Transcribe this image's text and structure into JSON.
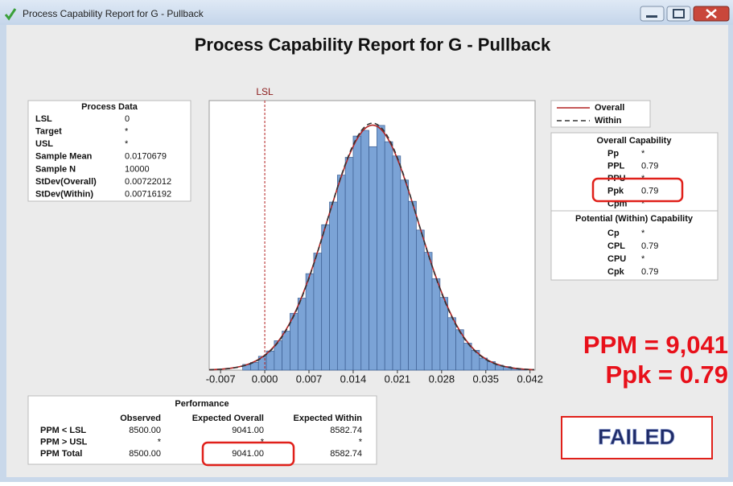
{
  "window": {
    "title": "Process Capability Report for G - Pullback"
  },
  "report": {
    "title": "Process Capability Report for G - Pullback"
  },
  "process_data": {
    "title": "Process Data",
    "rows": [
      {
        "label": "LSL",
        "value": 0
      },
      {
        "label": "Target",
        "value": "*"
      },
      {
        "label": "USL",
        "value": "*"
      },
      {
        "label": "Sample Mean",
        "value": 0.0170679
      },
      {
        "label": "Sample N",
        "value": 10000
      },
      {
        "label": "StDev(Overall)",
        "value": 0.00722012
      },
      {
        "label": "StDev(Within)",
        "value": 0.00716192
      }
    ]
  },
  "chart_data": {
    "type": "histogram",
    "bins": [
      -0.0035,
      -0.00225,
      -0.001,
      0.00025,
      0.0015,
      0.00275,
      0.004,
      0.00525,
      0.0065,
      0.00775,
      0.009,
      0.01025,
      0.0115,
      0.01275,
      0.014,
      0.01525,
      0.0165,
      0.01775,
      0.019,
      0.02025,
      0.0215,
      0.02275,
      0.024,
      0.02525,
      0.0265,
      0.02775,
      0.029,
      0.03025,
      0.0315,
      0.03275,
      0.034,
      0.03525,
      0.0365,
      0.03775,
      0.039,
      0.04025,
      0.0415
    ],
    "counts": [
      16,
      22,
      39,
      54,
      83,
      110,
      160,
      203,
      272,
      330,
      410,
      474,
      550,
      600,
      660,
      676,
      630,
      690,
      644,
      604,
      536,
      476,
      395,
      332,
      258,
      205,
      148,
      114,
      76,
      56,
      34,
      24,
      14,
      10,
      5,
      3
    ],
    "color": "#7ba3d6",
    "xlim": [
      -0.0088,
      0.0428
    ],
    "xticks": [
      -0.007,
      {
        "value": 0,
        "label": "0.000"
      },
      0.007,
      0.014,
      0.021,
      0.028,
      0.035,
      0.042
    ],
    "ylim": [
      0,
      760
    ],
    "annotations": [
      {
        "text": "LSL",
        "x": 0
      }
    ],
    "series": [
      {
        "name": "Overall",
        "color": "#b22222",
        "style": "solid"
      },
      {
        "name": "Within",
        "color": "#333333",
        "style": "dashed"
      }
    ]
  },
  "overall_capability": {
    "title": "Overall Capability",
    "rows": [
      {
        "label": "Pp",
        "value": "*"
      },
      {
        "label": "PPL",
        "value": "0.79"
      },
      {
        "label": "PPU",
        "value": "*"
      },
      {
        "label": "Ppk",
        "value": "0.79"
      },
      {
        "label": "Cpm",
        "value": "*"
      }
    ]
  },
  "potential_capability": {
    "title": "Potential (Within) Capability",
    "rows": [
      {
        "label": "Cp",
        "value": "*"
      },
      {
        "label": "CPL",
        "value": "0.79"
      },
      {
        "label": "CPU",
        "value": "*"
      },
      {
        "label": "Cpk",
        "value": "0.79"
      }
    ]
  },
  "performance": {
    "title": "Performance",
    "columns": [
      "Observed",
      "Expected Overall",
      "Expected Within"
    ],
    "rows": [
      {
        "label": "PPM < LSL",
        "cells": [
          "8500.00",
          "9041.00",
          "8582.74"
        ]
      },
      {
        "label": "PPM > USL",
        "cells": [
          "*",
          "*",
          "*"
        ]
      },
      {
        "label": "PPM Total",
        "cells": [
          "8500.00",
          "9041.00",
          "8582.74"
        ]
      }
    ]
  },
  "annotations": {
    "ppm": "PPM = 9,041",
    "ppk": "Ppk = 0.79",
    "status": "FAILED"
  }
}
